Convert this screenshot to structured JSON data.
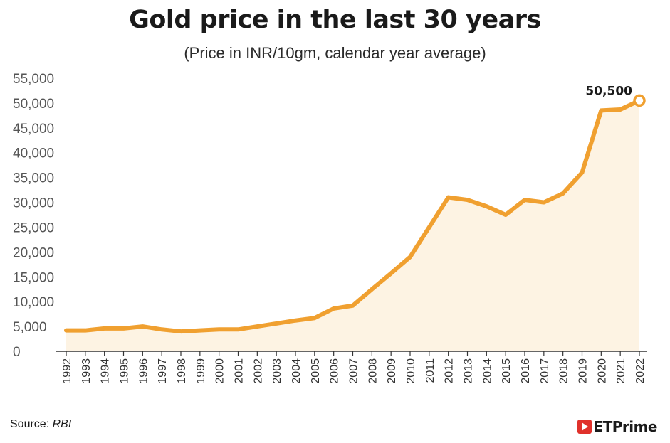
{
  "chart_data": {
    "type": "area",
    "title": "Gold price in the last 30 years",
    "subtitle": "(Price in INR/10gm, calendar year average)",
    "xlabel": "",
    "ylabel": "",
    "x": [
      "1992",
      "1993",
      "1994",
      "1995",
      "1996",
      "1997",
      "1998",
      "1999",
      "2000",
      "2001",
      "2002",
      "2003",
      "2004",
      "2005",
      "2006",
      "2007",
      "2008",
      "2009",
      "2010",
      "2011",
      "2012",
      "2013",
      "2014",
      "2015",
      "2016",
      "2017",
      "2018",
      "2019",
      "2020",
      "2021",
      "2022"
    ],
    "series": [
      {
        "name": "Gold price (INR/10gm)",
        "values": [
          4200,
          4200,
          4600,
          4600,
          5000,
          4400,
          4000,
          4200,
          4400,
          4400,
          5000,
          5600,
          6200,
          6700,
          8600,
          9200,
          12500,
          15700,
          19000,
          25000,
          31000,
          30500,
          29200,
          27500,
          30500,
          30000,
          31800,
          36000,
          48500,
          48700,
          50500
        ]
      }
    ],
    "ylim": [
      0,
      55000
    ],
    "yticks": [
      0,
      5000,
      10000,
      15000,
      20000,
      25000,
      30000,
      35000,
      40000,
      45000,
      50000,
      55000
    ],
    "ytick_labels": [
      "0",
      "5,000",
      "10,000",
      "15,000",
      "20,000",
      "25,000",
      "30,000",
      "35,000",
      "40,000",
      "45,000",
      "50,000",
      "55,000"
    ],
    "grid": false,
    "annotations": [
      {
        "x": "2022",
        "text": "50,500"
      }
    ],
    "colors": {
      "line": "#f0a030",
      "fill": "#fdf3e3"
    }
  },
  "source": {
    "label": "Source:",
    "name": "RBI"
  },
  "brand": {
    "name": "ETPrime"
  }
}
